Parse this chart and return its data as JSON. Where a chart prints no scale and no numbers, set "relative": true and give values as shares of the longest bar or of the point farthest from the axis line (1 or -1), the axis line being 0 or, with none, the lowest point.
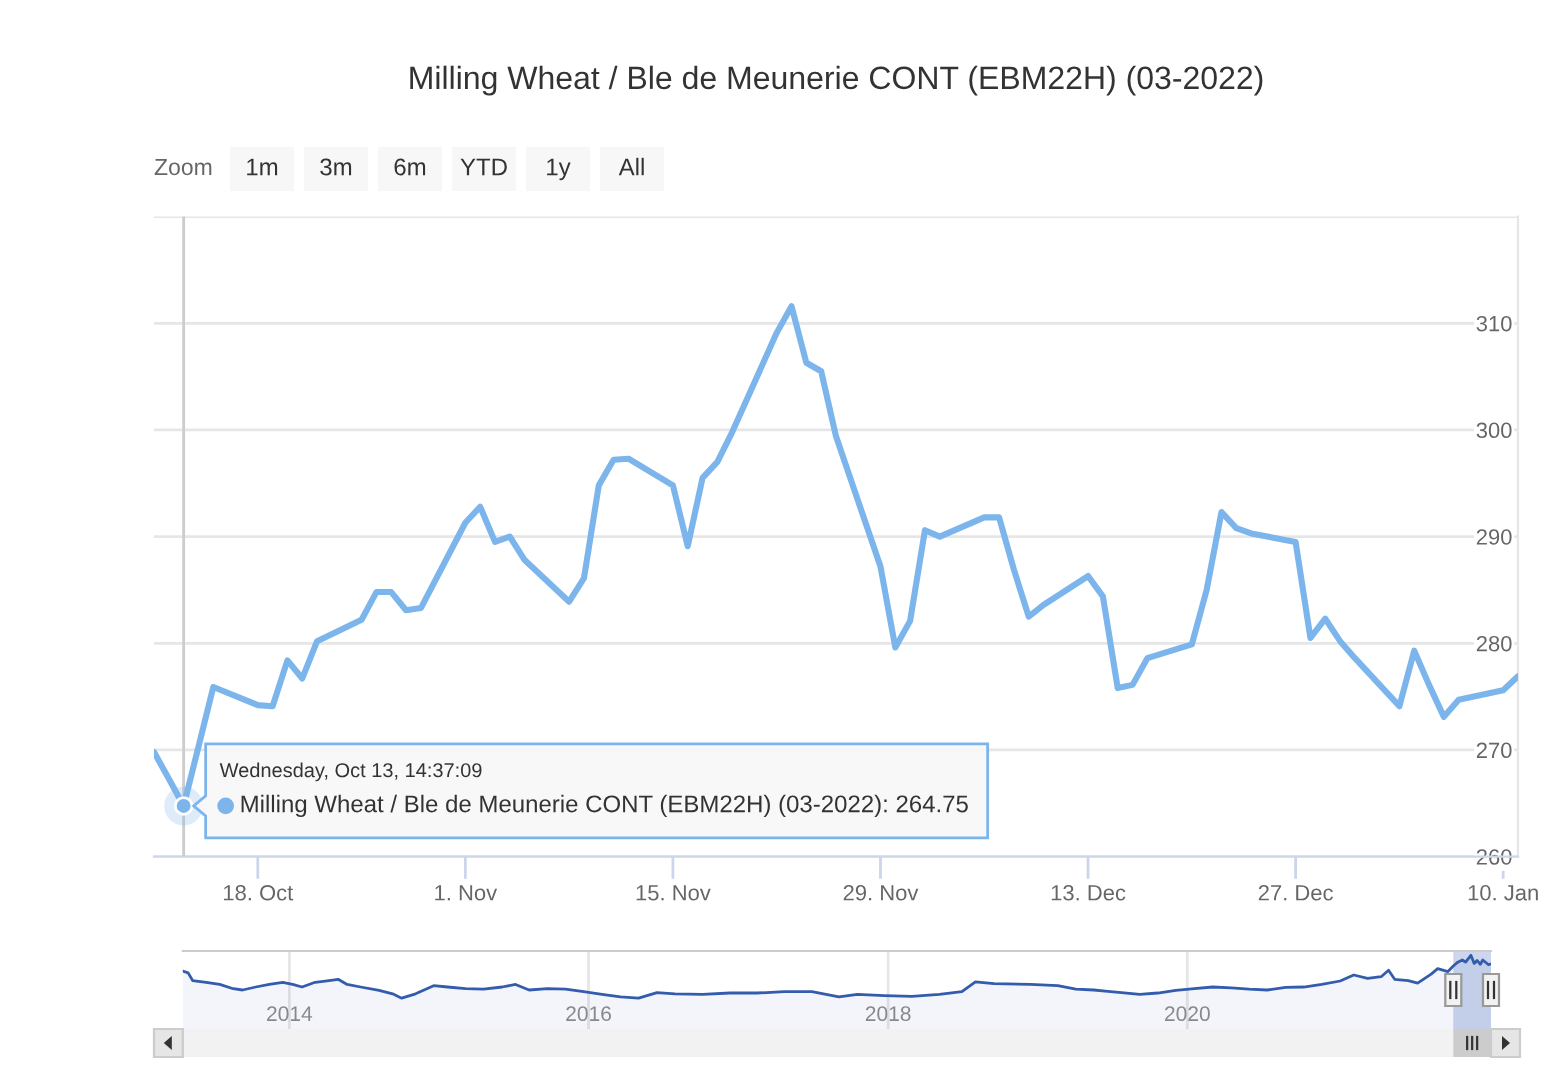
{
  "chart_data": [
    {
      "type": "line",
      "title": "Milling Wheat / Ble de Meunerie CONT (EBM22H) (03-2022)",
      "x": [
        "2021-10-11",
        "2021-10-12",
        "2021-10-13",
        "2021-10-14",
        "2021-10-15",
        "2021-10-18",
        "2021-10-19",
        "2021-10-20",
        "2021-10-21",
        "2021-10-22",
        "2021-10-25",
        "2021-10-26",
        "2021-10-27",
        "2021-10-28",
        "2021-10-29",
        "2021-11-01",
        "2021-11-02",
        "2021-11-03",
        "2021-11-04",
        "2021-11-05",
        "2021-11-08",
        "2021-11-09",
        "2021-11-10",
        "2021-11-11",
        "2021-11-12",
        "2021-11-15",
        "2021-11-16",
        "2021-11-17",
        "2021-11-18",
        "2021-11-19",
        "2021-11-22",
        "2021-11-23",
        "2021-11-24",
        "2021-11-25",
        "2021-11-26",
        "2021-11-29",
        "2021-11-30",
        "2021-12-01",
        "2021-12-02",
        "2021-12-03",
        "2021-12-06",
        "2021-12-07",
        "2021-12-08",
        "2021-12-09",
        "2021-12-10",
        "2021-12-13",
        "2021-12-14",
        "2021-12-15",
        "2021-12-16",
        "2021-12-17",
        "2021-12-20",
        "2021-12-21",
        "2021-12-22",
        "2021-12-23",
        "2021-12-24",
        "2021-12-27",
        "2021-12-28",
        "2021-12-29",
        "2021-12-30",
        "2021-12-31",
        "2022-01-03",
        "2022-01-04",
        "2022-01-05",
        "2022-01-06",
        "2022-01-07",
        "2022-01-10",
        "2022-01-11"
      ],
      "values": [
        269.8,
        267.3,
        264.75,
        270.3,
        275.9,
        274.2,
        274.1,
        278.4,
        276.7,
        280.2,
        282.2,
        284.8,
        284.8,
        283.1,
        283.3,
        291.3,
        292.8,
        289.5,
        290.0,
        287.8,
        283.9,
        286.1,
        294.8,
        297.2,
        297.3,
        294.8,
        289.1,
        295.5,
        297.0,
        299.8,
        309.1,
        311.6,
        306.3,
        305.5,
        299.4,
        287.2,
        279.6,
        282.1,
        290.6,
        290.0,
        291.8,
        291.8,
        286.9,
        282.5,
        283.6,
        286.3,
        284.4,
        275.8,
        276.1,
        278.6,
        279.9,
        285.0,
        292.3,
        290.8,
        290.3,
        289.5,
        280.5,
        282.3,
        280.2,
        278.6,
        274.1,
        279.3,
        276.1,
        273.1,
        274.7,
        275.6,
        276.9
      ],
      "color": "#7cb5ec",
      "line_style": "solid",
      "xlim": [
        "2021-10-11",
        "2022-01-11"
      ],
      "xticks": [
        {
          "value": "2021-10-18",
          "label": "18. Oct"
        },
        {
          "value": "2021-11-01",
          "label": "1. Nov"
        },
        {
          "value": "2021-11-15",
          "label": "15. Nov"
        },
        {
          "value": "2021-11-29",
          "label": "29. Nov"
        },
        {
          "value": "2021-12-13",
          "label": "13. Dec"
        },
        {
          "value": "2021-12-27",
          "label": "27. Dec"
        },
        {
          "value": "2022-01-10",
          "label": "10. Jan"
        }
      ],
      "ylim": [
        260,
        320
      ],
      "yticks": [
        260,
        270,
        280,
        290,
        300,
        310,
        {
          "value": 320,
          "label": null
        }
      ],
      "grid": "y",
      "ref_lines": [
        {
          "axis": "x",
          "value": "2021-10-13",
          "color": "#cccccc"
        }
      ],
      "annotations": [
        "Zoom",
        "1m",
        "3m",
        "6m",
        "YTD",
        "1y",
        "All",
        {
          "text": "Wednesday, Oct 13, 14:37:09",
          "x": "2021-10-13",
          "y": 264.75
        },
        {
          "text": "Milling Wheat / Ble de Meunerie CONT (EBM22H) (03-2022): 264.75",
          "x": "2021-10-13",
          "y": 264.75
        }
      ]
    },
    {
      "type": "area",
      "relative": true,
      "color": "#335cad",
      "x": [
        "2013-04-16",
        "2013-04-29",
        "2013-05-10",
        "2013-06-12",
        "2013-07-15",
        "2013-08-17",
        "2013-09-09",
        "2013-10-11",
        "2013-11-13",
        "2013-12-16",
        "2014-01-09",
        "2014-02-01",
        "2014-03-05",
        "2014-04-08",
        "2014-04-30",
        "2014-05-22",
        "2014-06-24",
        "2014-08-08",
        "2014-09-10",
        "2014-10-02",
        "2014-11-05",
        "2014-12-19",
        "2015-01-22",
        "2015-03-07",
        "2015-04-20",
        "2015-06-04",
        "2015-07-07",
        "2015-08-09",
        "2015-09-23",
        "2015-11-06",
        "2015-12-20",
        "2016-02-03",
        "2016-03-19",
        "2016-05-02",
        "2016-06-16",
        "2016-07-30",
        "2016-10-05",
        "2016-12-11",
        "2017-02-16",
        "2017-04-23",
        "2017-06-29",
        "2017-09-03",
        "2017-10-18",
        "2017-12-23",
        "2018-02-28",
        "2018-05-06",
        "2018-06-30",
        "2018-08-02",
        "2018-09-16",
        "2018-12-14",
        "2019-02-19",
        "2019-04-04",
        "2019-05-18",
        "2019-06-21",
        "2019-07-24",
        "2019-09-07",
        "2019-10-21",
        "2019-12-04",
        "2020-01-18",
        "2020-03-03",
        "2020-04-17",
        "2020-05-31",
        "2020-07-14",
        "2020-08-28",
        "2020-10-11",
        "2020-11-24",
        "2021-01-08",
        "2021-02-10",
        "2021-03-16",
        "2021-04-18",
        "2021-05-06",
        "2021-05-21",
        "2021-06-23",
        "2021-07-16",
        "2021-08-18",
        "2021-09-03",
        "2021-09-28",
        "2021-10-11",
        "2021-10-22",
        "2021-11-02",
        "2021-11-10",
        "2021-11-23",
        "2021-12-01",
        "2021-12-08",
        "2021-12-16",
        "2021-12-22",
        "2022-01-05",
        "2022-01-11"
      ],
      "values": [
        0.63,
        0.59,
        0.41,
        0.37,
        0.32,
        0.22,
        0.19,
        0.26,
        0.32,
        0.37,
        0.32,
        0.26,
        0.37,
        0.41,
        0.44,
        0.32,
        0.26,
        0.18,
        0.1,
        0,
        0.1,
        0.29,
        0.26,
        0.22,
        0.21,
        0.26,
        0.32,
        0.19,
        0.22,
        0.21,
        0.15,
        0.09,
        0.03,
        0,
        0.13,
        0.1,
        0.09,
        0.12,
        0.12,
        0.15,
        0.15,
        0.03,
        0.09,
        0.06,
        0.04,
        0.09,
        0.15,
        0.38,
        0.34,
        0.32,
        0.29,
        0.21,
        0.19,
        0.16,
        0.13,
        0.09,
        0.12,
        0.18,
        0.22,
        0.26,
        0.24,
        0.21,
        0.19,
        0.25,
        0.26,
        0.32,
        0.4,
        0.54,
        0.46,
        0.5,
        0.65,
        0.44,
        0.41,
        0.35,
        0.56,
        0.69,
        0.62,
        0.75,
        0.84,
        0.89,
        0.84,
        1,
        0.81,
        0.88,
        0.79,
        0.89,
        0.78,
        0.8
      ],
      "xlim": [
        "2013-04-16",
        "2022-01-11"
      ],
      "xticks": [
        {
          "value": "2014-01-01",
          "label": "2014"
        },
        {
          "value": "2016-01-01",
          "label": "2016"
        },
        {
          "value": "2018-01-01",
          "label": "2018"
        },
        {
          "value": "2020-01-01",
          "label": "2020"
        }
      ],
      "grid": "x",
      "tick_labels": "x",
      "bands": [
        {
          "axis": "x",
          "from": "2021-10-11",
          "to": "2022-01-11",
          "color": "#cdd6ec"
        }
      ]
    }
  ]
}
